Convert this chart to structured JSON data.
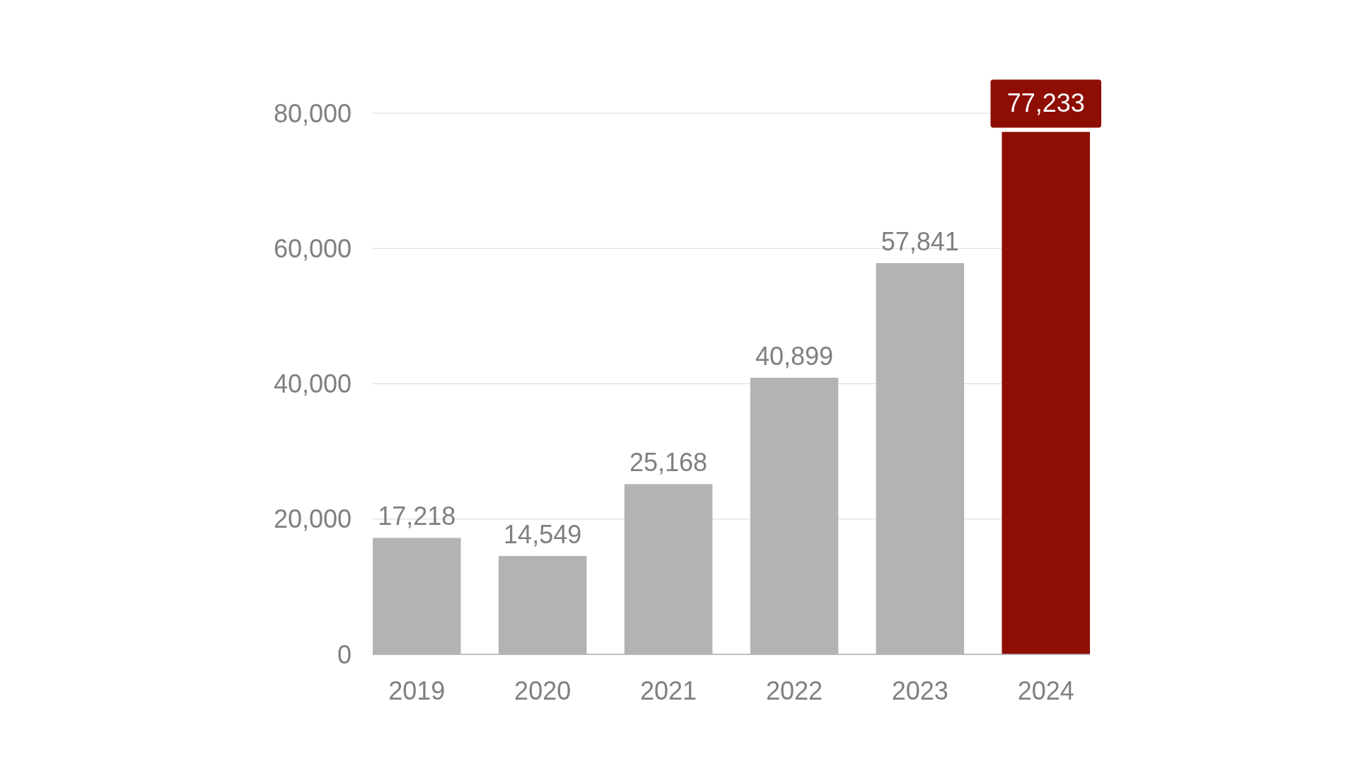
{
  "chart_data": {
    "type": "bar",
    "categories": [
      "2019",
      "2020",
      "2021",
      "2022",
      "2023",
      "2024"
    ],
    "values": [
      17218,
      14549,
      25168,
      40899,
      57841,
      77233
    ],
    "value_labels": [
      "17,218",
      "14,549",
      "25,168",
      "40,899",
      "57,841",
      "77,233"
    ],
    "colors": [
      "#b3b3b3",
      "#b3b3b3",
      "#b3b3b3",
      "#b3b3b3",
      "#b3b3b3",
      "#8e0e03"
    ],
    "ylim": [
      0,
      80000
    ],
    "yticks": [
      0,
      {
        "value": 20000,
        "label": "20,000"
      },
      {
        "value": 40000,
        "label": "40,000"
      },
      {
        "value": 60000,
        "label": "60,000"
      },
      {
        "value": 80000,
        "label": "80,000"
      }
    ],
    "grid": "y"
  }
}
